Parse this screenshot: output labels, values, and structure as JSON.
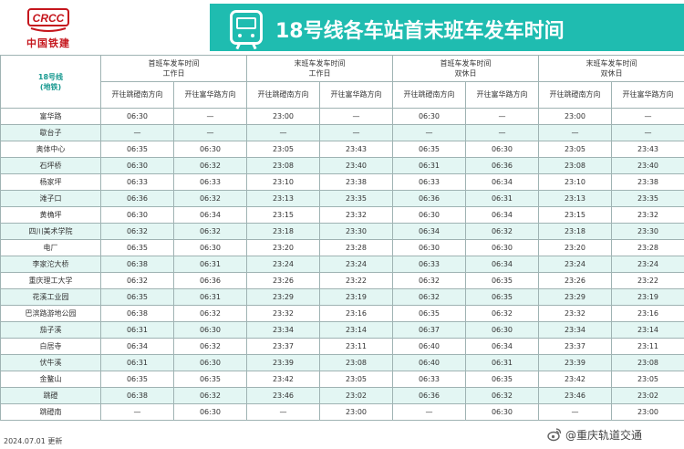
{
  "logo": {
    "text": "中国铁建",
    "mark": "CRCC"
  },
  "banner": {
    "title": "18号线各车站首末班车发车时间",
    "icon": "train-icon",
    "color": "#1fbcb0"
  },
  "table": {
    "corner_line1": "18号线",
    "corner_line2": "(地铁)",
    "groups": [
      {
        "line1": "首班车发车时间",
        "line2": "工作日"
      },
      {
        "line1": "末班车发车时间",
        "line2": "工作日"
      },
      {
        "line1": "首班车发车时间",
        "line2": "双休日"
      },
      {
        "line1": "末班车发车时间",
        "line2": "双休日"
      }
    ],
    "directions": [
      "开往跳磴南方向",
      "开往富华路方向",
      "开往跳磴南方向",
      "开往富华路方向",
      "开往跳磴南方向",
      "开往富华路方向",
      "开往跳磴南方向",
      "开往富华路方向"
    ],
    "rows": [
      {
        "station": "富华路",
        "times": [
          "06:30",
          "—",
          "23:00",
          "—",
          "06:30",
          "—",
          "23:00",
          "—"
        ]
      },
      {
        "station": "歇台子",
        "times": [
          "—",
          "—",
          "—",
          "—",
          "—",
          "—",
          "—",
          "—"
        ]
      },
      {
        "station": "奥体中心",
        "times": [
          "06:35",
          "06:30",
          "23:05",
          "23:43",
          "06:35",
          "06:30",
          "23:05",
          "23:43"
        ]
      },
      {
        "station": "石坪桥",
        "times": [
          "06:30",
          "06:32",
          "23:08",
          "23:40",
          "06:31",
          "06:36",
          "23:08",
          "23:40"
        ]
      },
      {
        "station": "杨家坪",
        "times": [
          "06:33",
          "06:33",
          "23:10",
          "23:38",
          "06:33",
          "06:34",
          "23:10",
          "23:38"
        ]
      },
      {
        "station": "滩子口",
        "times": [
          "06:36",
          "06:32",
          "23:13",
          "23:35",
          "06:36",
          "06:31",
          "23:13",
          "23:35"
        ]
      },
      {
        "station": "黄桷坪",
        "times": [
          "06:30",
          "06:34",
          "23:15",
          "23:32",
          "06:30",
          "06:34",
          "23:15",
          "23:32"
        ]
      },
      {
        "station": "四川美术学院",
        "times": [
          "06:32",
          "06:32",
          "23:18",
          "23:30",
          "06:34",
          "06:32",
          "23:18",
          "23:30"
        ]
      },
      {
        "station": "电厂",
        "times": [
          "06:35",
          "06:30",
          "23:20",
          "23:28",
          "06:30",
          "06:30",
          "23:20",
          "23:28"
        ]
      },
      {
        "station": "李家沱大桥",
        "times": [
          "06:38",
          "06:31",
          "23:24",
          "23:24",
          "06:33",
          "06:34",
          "23:24",
          "23:24"
        ]
      },
      {
        "station": "重庆理工大学",
        "times": [
          "06:32",
          "06:36",
          "23:26",
          "23:22",
          "06:32",
          "06:35",
          "23:26",
          "23:22"
        ]
      },
      {
        "station": "花溪工业园",
        "times": [
          "06:35",
          "06:31",
          "23:29",
          "23:19",
          "06:32",
          "06:35",
          "23:29",
          "23:19"
        ]
      },
      {
        "station": "巴滨路游地公园",
        "times": [
          "06:38",
          "06:32",
          "23:32",
          "23:16",
          "06:35",
          "06:32",
          "23:32",
          "23:16"
        ]
      },
      {
        "station": "茄子溪",
        "times": [
          "06:31",
          "06:30",
          "23:34",
          "23:14",
          "06:37",
          "06:30",
          "23:34",
          "23:14"
        ]
      },
      {
        "station": "白居寺",
        "times": [
          "06:34",
          "06:32",
          "23:37",
          "23:11",
          "06:40",
          "06:34",
          "23:37",
          "23:11"
        ]
      },
      {
        "station": "伏牛溪",
        "times": [
          "06:31",
          "06:30",
          "23:39",
          "23:08",
          "06:40",
          "06:31",
          "23:39",
          "23:08"
        ]
      },
      {
        "station": "金鳌山",
        "times": [
          "06:35",
          "06:35",
          "23:42",
          "23:05",
          "06:33",
          "06:35",
          "23:42",
          "23:05"
        ]
      },
      {
        "station": "跳磴",
        "times": [
          "06:38",
          "06:32",
          "23:46",
          "23:02",
          "06:36",
          "06:32",
          "23:46",
          "23:02"
        ]
      },
      {
        "station": "跳磴南",
        "times": [
          "—",
          "06:30",
          "—",
          "23:00",
          "—",
          "06:30",
          "—",
          "23:00"
        ]
      }
    ]
  },
  "footer": {
    "date": "2024.07.01 更新"
  },
  "watermark": {
    "text": "@重庆轨道交通",
    "icon": "weibo-icon"
  }
}
